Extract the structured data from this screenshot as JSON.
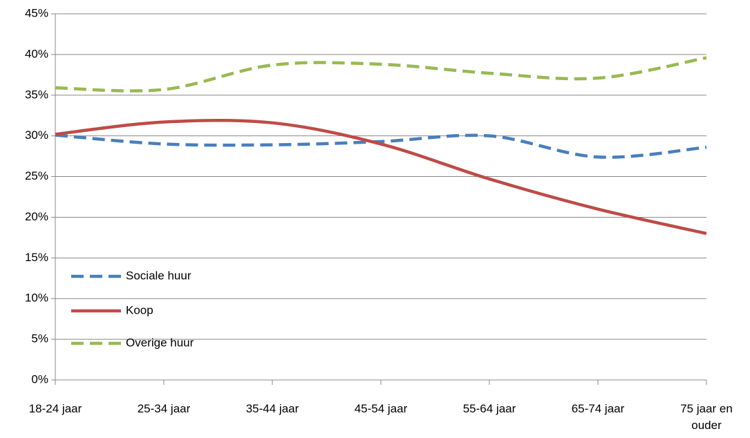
{
  "chart_data": {
    "type": "line",
    "categories": [
      "18-24 jaar",
      "25-34 jaar",
      "35-44 jaar",
      "45-54 jaar",
      "55-64 jaar",
      "65-74 jaar",
      "75 jaar en ouder"
    ],
    "series": [
      {
        "name": "Sociale huur",
        "color": "#4a7ebb",
        "dash": "dashed",
        "values": [
          30.1,
          29.0,
          28.9,
          29.3,
          30.0,
          27.4,
          28.6
        ]
      },
      {
        "name": "Koop",
        "color": "#be4b48",
        "dash": "solid",
        "values": [
          30.2,
          31.7,
          31.6,
          29.0,
          24.7,
          21.0,
          18.0
        ]
      },
      {
        "name": "Overige huur",
        "color": "#98b954",
        "dash": "dashed",
        "values": [
          35.9,
          35.7,
          38.7,
          38.8,
          37.7,
          37.1,
          39.6
        ]
      }
    ],
    "ylim": [
      0,
      45
    ],
    "yticks": [
      {
        "value": 0,
        "label": "0%"
      },
      {
        "value": 5,
        "label": "5%"
      },
      {
        "value": 10,
        "label": "10%"
      },
      {
        "value": 15,
        "label": "15%"
      },
      {
        "value": 20,
        "label": "20%"
      },
      {
        "value": 25,
        "label": "25%"
      },
      {
        "value": 30,
        "label": "30%"
      },
      {
        "value": 35,
        "label": "35%"
      },
      {
        "value": 40,
        "label": "40%"
      },
      {
        "value": 45,
        "label": "45%"
      }
    ],
    "grid": true,
    "smooth": true,
    "legend": "lower-left"
  }
}
